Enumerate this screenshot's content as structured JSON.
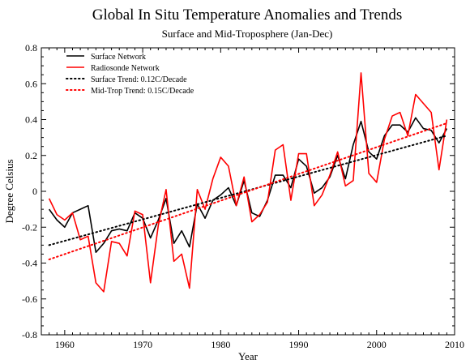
{
  "chart_data": {
    "type": "line",
    "title": "Global In Situ Temperature Anomalies and Trends",
    "subtitle": "Surface and Mid-Troposphere (Jan-Dec)",
    "xlabel": "Year",
    "ylabel": "Degree Celsius",
    "xlim": [
      1957,
      2010
    ],
    "ylim": [
      -0.8,
      0.8
    ],
    "xticks": [
      1960,
      1970,
      1980,
      1990,
      2000,
      2010
    ],
    "yticks": [
      -0.8,
      -0.6,
      -0.4,
      -0.2,
      0,
      0.2,
      0.4,
      0.6,
      0.8
    ],
    "ytick_labels": [
      "-0.8",
      "-0.6",
      "-0.4",
      "-0.2",
      "0",
      "0.2",
      "0.4",
      "0.6",
      "0.8"
    ],
    "grid": false,
    "legend_position": "top-left",
    "x": [
      1958,
      1959,
      1960,
      1961,
      1962,
      1963,
      1964,
      1965,
      1966,
      1967,
      1968,
      1969,
      1970,
      1971,
      1972,
      1973,
      1974,
      1975,
      1976,
      1977,
      1978,
      1979,
      1980,
      1981,
      1982,
      1983,
      1984,
      1985,
      1986,
      1987,
      1988,
      1989,
      1990,
      1991,
      1992,
      1993,
      1994,
      1995,
      1996,
      1997,
      1998,
      1999,
      2000,
      2001,
      2002,
      2003,
      2004,
      2005,
      2006,
      2007,
      2008,
      2009
    ],
    "series": [
      {
        "name": "Surface Network",
        "color": "#000000",
        "style": "solid",
        "values": [
          -0.1,
          -0.16,
          -0.2,
          -0.12,
          -0.1,
          -0.08,
          -0.34,
          -0.29,
          -0.22,
          -0.21,
          -0.22,
          -0.12,
          -0.15,
          -0.26,
          -0.16,
          -0.04,
          -0.29,
          -0.22,
          -0.31,
          -0.07,
          -0.15,
          -0.05,
          -0.02,
          0.02,
          -0.08,
          0.06,
          -0.12,
          -0.14,
          -0.05,
          0.09,
          0.09,
          0.02,
          0.18,
          0.14,
          -0.01,
          0.02,
          0.08,
          0.2,
          0.07,
          0.26,
          0.39,
          0.22,
          0.18,
          0.31,
          0.37,
          0.37,
          0.33,
          0.41,
          0.35,
          0.34,
          0.27,
          0.35
        ]
      },
      {
        "name": "Radiosonde Network",
        "color": "#ff0000",
        "style": "solid",
        "values": [
          -0.04,
          -0.13,
          -0.16,
          -0.12,
          -0.27,
          -0.25,
          -0.51,
          -0.56,
          -0.28,
          -0.29,
          -0.36,
          -0.11,
          -0.13,
          -0.51,
          -0.19,
          0.01,
          -0.39,
          -0.35,
          -0.54,
          0.01,
          -0.1,
          0.07,
          0.19,
          0.14,
          -0.08,
          0.08,
          -0.17,
          -0.13,
          -0.06,
          0.23,
          0.26,
          -0.05,
          0.21,
          0.21,
          -0.08,
          -0.02,
          0.09,
          0.22,
          0.03,
          0.06,
          0.66,
          0.1,
          0.05,
          0.29,
          0.42,
          0.44,
          0.31,
          0.54,
          0.49,
          0.44,
          0.12,
          0.4
        ]
      },
      {
        "name": "Surface Trend: 0.12C/Decade",
        "color": "#000000",
        "style": "dotted",
        "x": [
          1958,
          2009
        ],
        "values": [
          -0.3,
          0.31
        ]
      },
      {
        "name": "Mid-Trop Trend: 0.15C/Decade",
        "color": "#ff0000",
        "style": "dotted",
        "x": [
          1958,
          2009
        ],
        "values": [
          -0.38,
          0.38
        ]
      }
    ]
  }
}
